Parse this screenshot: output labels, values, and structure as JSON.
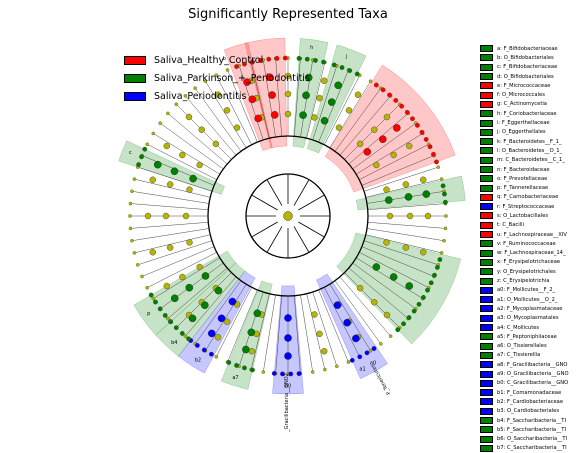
{
  "chart_data": {
    "type": "cladogram",
    "title": "Significantly Represented Taxa",
    "colors": {
      "healthy": "#ff0000",
      "parkinson": "#008000",
      "periodontitis": "#0000ff",
      "neutral": "#b5b500"
    },
    "legend": [
      {
        "label": "Saliva_Healthy_Control",
        "color": "#ff0000"
      },
      {
        "label": "Saliva_Parkinson_+_Periodontitis",
        "color": "#008000"
      },
      {
        "label": "Saliva_Periodontitis",
        "color": "#0000ff"
      }
    ],
    "taxa": [
      {
        "code": "a",
        "name": "F_Bifidobacteriaceae",
        "group": "parkinson"
      },
      {
        "code": "b",
        "name": "O_Bifidobacteriales",
        "group": "parkinson"
      },
      {
        "code": "c",
        "name": "F_Bifidobacteriaceae",
        "group": "parkinson"
      },
      {
        "code": "d",
        "name": "O_Bifidobacteriales",
        "group": "parkinson"
      },
      {
        "code": "e",
        "name": "F_Micrococcaceae",
        "group": "healthy"
      },
      {
        "code": "f",
        "name": "O_Micrococcales",
        "group": "healthy"
      },
      {
        "code": "g",
        "name": "C_Actinomycetia",
        "group": "healthy"
      },
      {
        "code": "h",
        "name": "F_Coriobacteriaceae",
        "group": "parkinson"
      },
      {
        "code": "i",
        "name": "F_Eggerthellaceae",
        "group": "parkinson"
      },
      {
        "code": "j",
        "name": "O_Eggerthellales",
        "group": "parkinson"
      },
      {
        "code": "k",
        "name": "F_Bacteroidetes__F_1_",
        "group": "parkinson"
      },
      {
        "code": "l",
        "name": "O_Bacteroidetes__O_1_",
        "group": "parkinson"
      },
      {
        "code": "m",
        "name": "C_Bacteroidetes__C_1_",
        "group": "parkinson"
      },
      {
        "code": "n",
        "name": "F_Bacteroidaceae",
        "group": "parkinson"
      },
      {
        "code": "o",
        "name": "F_Prevotellaceae",
        "group": "parkinson"
      },
      {
        "code": "p",
        "name": "F_Tannerellaceae",
        "group": "parkinson"
      },
      {
        "code": "q",
        "name": "F_Carnobacteriaceae",
        "group": "healthy"
      },
      {
        "code": "r",
        "name": "F_Streptococcaceae",
        "group": "periodontitis"
      },
      {
        "code": "s",
        "name": "O_Lactobacillales",
        "group": "healthy"
      },
      {
        "code": "t",
        "name": "C_Bacilli",
        "group": "healthy"
      },
      {
        "code": "u",
        "name": "F_Lachnospiraceae__XIV",
        "group": "healthy"
      },
      {
        "code": "v",
        "name": "F_Ruminococcaceae",
        "group": "parkinson"
      },
      {
        "code": "w",
        "name": "F_Lachnospiraceae_14_",
        "group": "parkinson"
      },
      {
        "code": "x",
        "name": "F_Erysipelotrichaceae",
        "group": "parkinson"
      },
      {
        "code": "y",
        "name": "O_Erysipelotrichales",
        "group": "parkinson"
      },
      {
        "code": "z",
        "name": "C_Erysipelotrichia",
        "group": "parkinson"
      },
      {
        "code": "a0",
        "name": "F_Mollicutes__F_2_",
        "group": "periodontitis"
      },
      {
        "code": "a1",
        "name": "O_Mollicutes__O_2_",
        "group": "periodontitis"
      },
      {
        "code": "a2",
        "name": "F_Mycoplasmataceae",
        "group": "periodontitis"
      },
      {
        "code": "a3",
        "name": "O_Mycoplasmatales",
        "group": "periodontitis"
      },
      {
        "code": "a4",
        "name": "C_Mollicutes",
        "group": "periodontitis"
      },
      {
        "code": "a5",
        "name": "F_Peptoniphilaceae",
        "group": "parkinson"
      },
      {
        "code": "a6",
        "name": "O_Tissierellales",
        "group": "parkinson"
      },
      {
        "code": "a7",
        "name": "C_Tissierellia",
        "group": "parkinson"
      },
      {
        "code": "a8",
        "name": "F_Gracilibacteria__GNO",
        "group": "periodontitis"
      },
      {
        "code": "a9",
        "name": "O_Gracilibacteria__GNO",
        "group": "periodontitis"
      },
      {
        "code": "b0",
        "name": "C_Gracilibacteria__GNO",
        "group": "periodontitis"
      },
      {
        "code": "b1",
        "name": "F_Comamonadaceae",
        "group": "periodontitis"
      },
      {
        "code": "b2",
        "name": "F_Cardiobacteriaceae",
        "group": "periodontitis"
      },
      {
        "code": "b3",
        "name": "O_Cardiobacteriales",
        "group": "periodontitis"
      },
      {
        "code": "b4",
        "name": "F_Saccharibacteria__TI",
        "group": "parkinson"
      },
      {
        "code": "b5",
        "name": "F_Saccharibacteria__TI",
        "group": "parkinson"
      },
      {
        "code": "b6",
        "name": "O_Saccharibacteria__TI",
        "group": "parkinson"
      },
      {
        "code": "b7",
        "name": "C_Saccharibacteria__TI",
        "group": "parkinson"
      }
    ],
    "clades": [
      {
        "code": "a",
        "group": "parkinson",
        "start": 155,
        "end": 162
      },
      {
        "code": "f",
        "group": "healthy",
        "start": 103,
        "end": 111
      },
      {
        "code": "g",
        "group": "healthy",
        "start": 91,
        "end": 104
      },
      {
        "code": "h",
        "group": "parkinson",
        "start": 77,
        "end": 86
      },
      {
        "code": "j",
        "group": "parkinson",
        "start": 64,
        "end": 74
      },
      {
        "code": "t",
        "group": "healthy",
        "start": 20,
        "end": 58
      },
      {
        "code": "z",
        "group": "parkinson",
        "start": 5,
        "end": 13
      },
      {
        "code": "m",
        "group": "parkinson",
        "start": -46,
        "end": -14
      },
      {
        "code": "a4",
        "group": "periodontitis",
        "start": -66,
        "end": -56
      },
      {
        "code": "b0",
        "group": "periodontitis",
        "start": -95,
        "end": -85
      },
      {
        "code": "a7",
        "group": "parkinson",
        "start": -112,
        "end": -103
      },
      {
        "code": "b3",
        "group": "periodontitis",
        "start": -128,
        "end": -118
      },
      {
        "code": "b7",
        "group": "parkinson",
        "start": -138,
        "end": -128
      },
      {
        "code": "p",
        "group": "parkinson",
        "start": -150,
        "end": -138
      }
    ],
    "ring_labels": [
      {
        "text": "a0",
        "angle": -60
      },
      {
        "text": "a1",
        "angle": -64
      },
      {
        "text": "b0",
        "angle": -90
      },
      {
        "text": "a7",
        "angle": -108
      },
      {
        "text": "b2",
        "angle": -122
      },
      {
        "text": "b4",
        "angle": -132
      },
      {
        "text": "p",
        "angle": -145
      },
      {
        "text": "j",
        "angle": 70
      },
      {
        "text": "h",
        "angle": 82
      },
      {
        "text": "b",
        "angle": 112
      },
      {
        "text": "c",
        "angle": 158
      }
    ],
    "outer_labels": [
      {
        "text": "P_Gracilibacteria__GNO2",
        "angle": -90
      },
      {
        "text": "P_Tenericutes",
        "angle": -60
      }
    ]
  }
}
